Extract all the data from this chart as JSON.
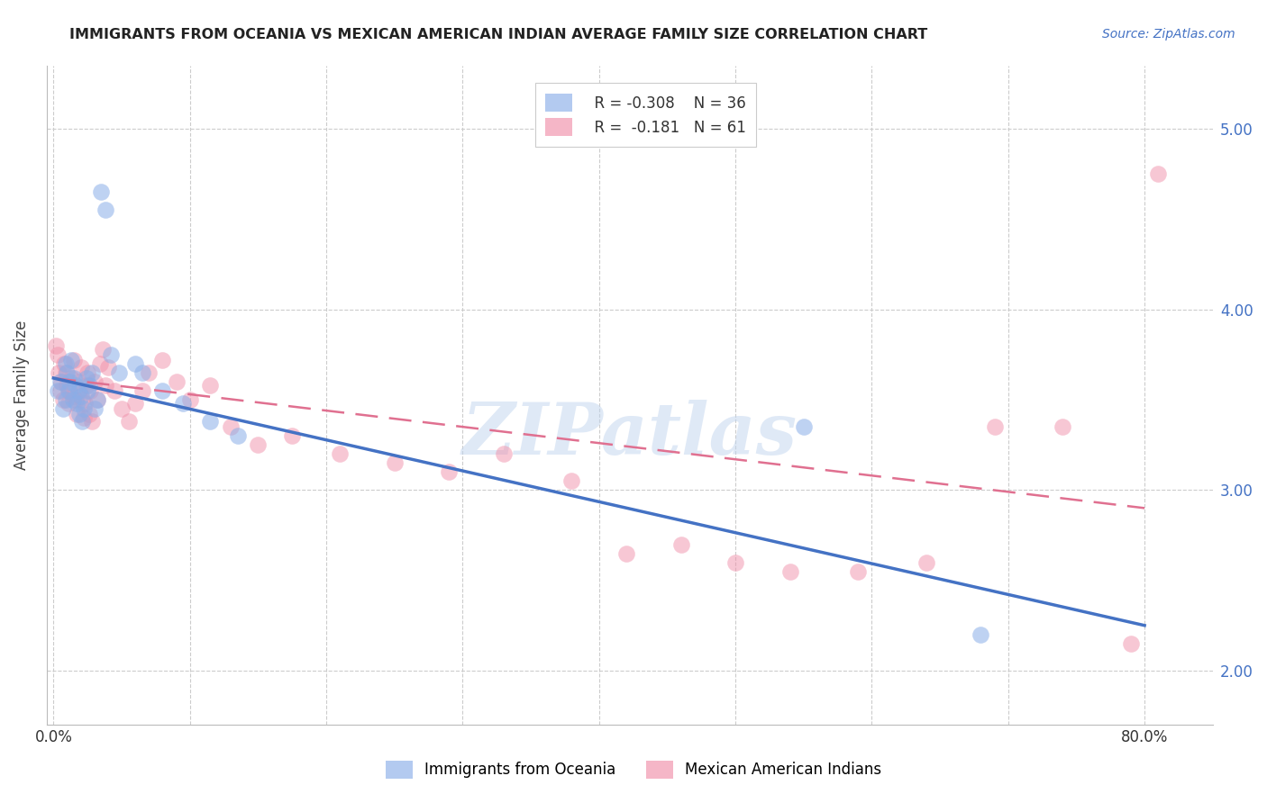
{
  "title": "IMMIGRANTS FROM OCEANIA VS MEXICAN AMERICAN INDIAN AVERAGE FAMILY SIZE CORRELATION CHART",
  "source": "Source: ZipAtlas.com",
  "ylabel": "Average Family Size",
  "ylim": [
    1.7,
    5.35
  ],
  "xlim": [
    -0.005,
    0.85
  ],
  "yticks": [
    2.0,
    3.0,
    4.0,
    5.0
  ],
  "xtick_positions": [
    0.0,
    0.1,
    0.2,
    0.3,
    0.4,
    0.5,
    0.6,
    0.7,
    0.8
  ],
  "xtick_labels": [
    "0.0%",
    "",
    "",
    "",
    "",
    "",
    "",
    "",
    "80.0%"
  ],
  "legend_r1": "R = -0.308",
  "legend_n1": "N = 36",
  "legend_r2": "R =  -0.181",
  "legend_n2": "N = 61",
  "color_blue": "#8aaee8",
  "color_pink": "#f090aa",
  "color_blue_line": "#4472c4",
  "color_pink_line": "#e07090",
  "watermark": "ZIPatlas",
  "blue_scatter_x": [
    0.003,
    0.005,
    0.007,
    0.009,
    0.009,
    0.01,
    0.011,
    0.012,
    0.013,
    0.014,
    0.015,
    0.016,
    0.017,
    0.018,
    0.019,
    0.02,
    0.021,
    0.022,
    0.024,
    0.025,
    0.026,
    0.028,
    0.03,
    0.032,
    0.035,
    0.038,
    0.042,
    0.048,
    0.06,
    0.065,
    0.08,
    0.095,
    0.115,
    0.135,
    0.55,
    0.68
  ],
  "blue_scatter_y": [
    3.55,
    3.6,
    3.45,
    3.7,
    3.5,
    3.65,
    3.55,
    3.6,
    3.72,
    3.5,
    3.62,
    3.58,
    3.48,
    3.55,
    3.42,
    3.52,
    3.38,
    3.45,
    3.62,
    3.55,
    3.58,
    3.65,
    3.45,
    3.5,
    4.65,
    4.55,
    3.75,
    3.65,
    3.7,
    3.65,
    3.55,
    3.48,
    3.38,
    3.3,
    3.35,
    2.2
  ],
  "pink_scatter_x": [
    0.002,
    0.003,
    0.004,
    0.005,
    0.006,
    0.007,
    0.008,
    0.009,
    0.01,
    0.011,
    0.012,
    0.013,
    0.014,
    0.015,
    0.016,
    0.017,
    0.018,
    0.019,
    0.02,
    0.021,
    0.022,
    0.023,
    0.024,
    0.025,
    0.026,
    0.027,
    0.028,
    0.03,
    0.032,
    0.034,
    0.036,
    0.038,
    0.04,
    0.045,
    0.05,
    0.055,
    0.06,
    0.065,
    0.07,
    0.08,
    0.09,
    0.1,
    0.115,
    0.13,
    0.15,
    0.175,
    0.21,
    0.25,
    0.29,
    0.33,
    0.38,
    0.42,
    0.46,
    0.5,
    0.54,
    0.59,
    0.64,
    0.69,
    0.74,
    0.79,
    0.81
  ],
  "pink_scatter_y": [
    3.8,
    3.75,
    3.65,
    3.55,
    3.6,
    3.5,
    3.7,
    3.65,
    3.58,
    3.48,
    3.55,
    3.62,
    3.52,
    3.72,
    3.5,
    3.42,
    3.6,
    3.55,
    3.68,
    3.5,
    3.4,
    3.48,
    3.58,
    3.65,
    3.42,
    3.55,
    3.38,
    3.6,
    3.5,
    3.7,
    3.78,
    3.58,
    3.68,
    3.55,
    3.45,
    3.38,
    3.48,
    3.55,
    3.65,
    3.72,
    3.6,
    3.5,
    3.58,
    3.35,
    3.25,
    3.3,
    3.2,
    3.15,
    3.1,
    3.2,
    3.05,
    2.65,
    2.7,
    2.6,
    2.55,
    2.55,
    2.6,
    3.35,
    3.35,
    2.15,
    4.75
  ],
  "blue_line_x": [
    0.0,
    0.8
  ],
  "blue_line_y": [
    3.62,
    2.25
  ],
  "pink_line_x": [
    0.0,
    0.8
  ],
  "pink_line_y": [
    3.62,
    2.9
  ]
}
